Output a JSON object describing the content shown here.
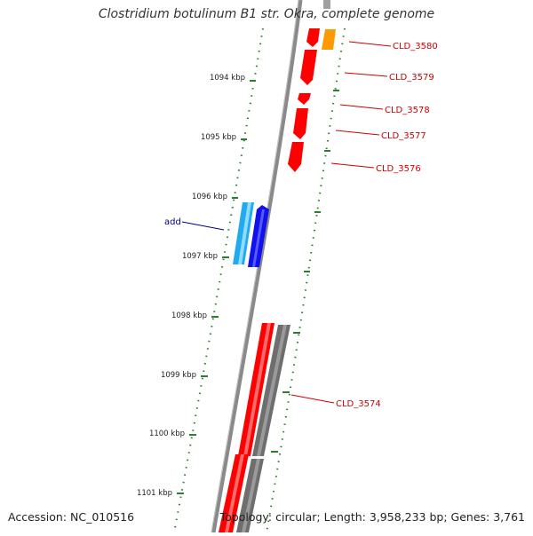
{
  "title": "Clostridium botulinum B1 str. Okra, complete genome",
  "footer": {
    "accession": "Accession: NC_010516",
    "summary": "Topology: circular; Length: 3,958,233 bp; Genes: 3,761"
  },
  "colors": {
    "tick": "#2e7d2e",
    "backbone": "#8a8a8a",
    "gene_forward": "#ff0000",
    "gene_gray": "#707070",
    "gene_orange": "#ff9900",
    "gene_cyan": "#22aaee",
    "gene_blue": "#1111ee",
    "gene_label": "#cc0000",
    "feature_label": "#000080"
  },
  "scale_labels": [
    "1094 kbp",
    "1095 kbp",
    "1096 kbp",
    "1097 kbp",
    "1098 kbp",
    "1099 kbp",
    "1100 kbp",
    "1101 kbp"
  ],
  "gene_labels": [
    "CLD_3580",
    "CLD_3579",
    "CLD_3578",
    "CLD_3577",
    "CLD_3576",
    "CLD_3574"
  ],
  "feature_labels": [
    "add"
  ]
}
